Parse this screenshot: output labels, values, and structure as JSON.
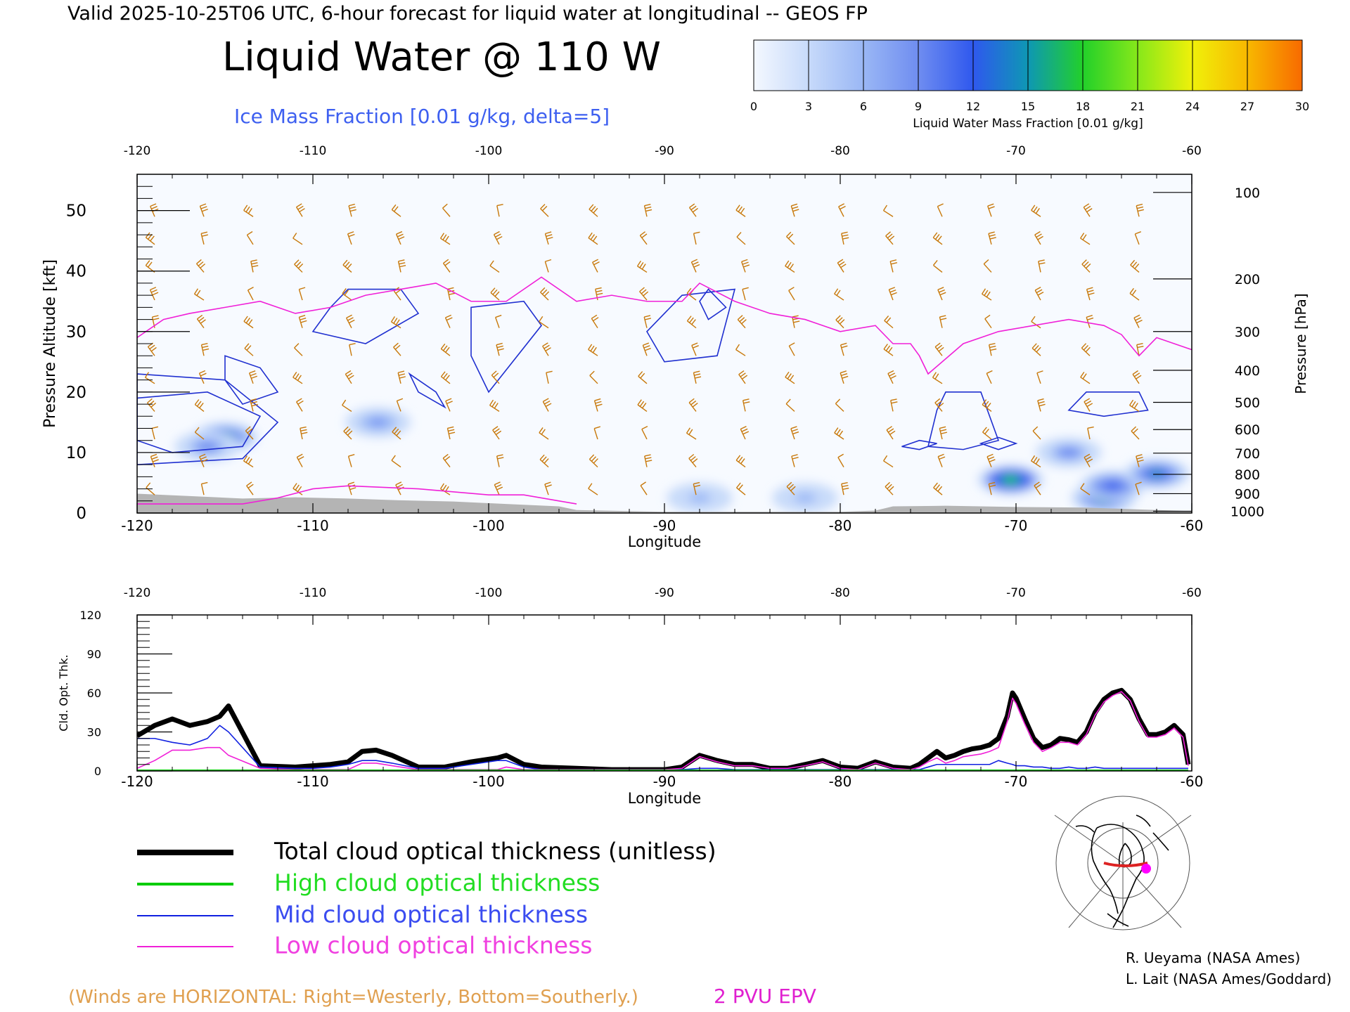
{
  "header": {
    "valid_line": "Valid 2025-10-25T06 UTC, 6-hour forecast for liquid water at longitudinal -- GEOS FP",
    "title": "Liquid Water @ 110 W",
    "subtitle": "Ice Mass Fraction [0.01 g/kg, delta=5]"
  },
  "colorbar": {
    "ticks": [
      "0",
      "3",
      "6",
      "9",
      "12",
      "15",
      "18",
      "21",
      "24",
      "27",
      "30"
    ],
    "label": "Liquid Water Mass Fraction [0.01 g/kg]",
    "colors": [
      "#f4f8ff",
      "#c7dafa",
      "#9ab7f5",
      "#6f8df0",
      "#2f58ee",
      "#0e97b4",
      "#22d02a",
      "#86e81a",
      "#f0f00a",
      "#f8b800",
      "#f86a00"
    ]
  },
  "colors": {
    "winds": "#c8780a",
    "epv": "#f020d8",
    "ice_contour": "#2030d0",
    "total": "#000000",
    "high": "#00cc00",
    "mid": "#1020e0",
    "low": "#f020d8",
    "terrain": "#b4b4b4"
  },
  "chart_data": [
    {
      "type": "heatmap",
      "title": "Liquid Water @ 110 W",
      "xlabel": "Longitude",
      "ylabel": "Pressure Altitude [kft]",
      "ylabel_right": "Pressure [hPa]",
      "xlim": [
        -120,
        -60
      ],
      "ylim": [
        0,
        56
      ],
      "x_ticks": [
        "-120",
        "-110",
        "-100",
        "-90",
        "-80",
        "-70",
        "-60"
      ],
      "top_x_ticks": [
        "-120",
        "-110",
        "-100",
        "-90",
        "-80",
        "-70",
        "-60"
      ],
      "y_ticks": [
        "0",
        "10",
        "20",
        "30",
        "40",
        "50"
      ],
      "pressure_ticks": [
        "100",
        "200",
        "300",
        "400",
        "500",
        "600",
        "700",
        "800",
        "900",
        "1000"
      ],
      "pressure_tick_kft": [
        53,
        38.7,
        30,
        23.6,
        18.3,
        13.8,
        9.9,
        6.4,
        3.2,
        0.3
      ],
      "liquid_water_blobs": [
        {
          "lon": -115.0,
          "kft": 12.5,
          "peak": 16
        },
        {
          "lon": -116.0,
          "kft": 11.0,
          "peak": 9
        },
        {
          "lon": -70.3,
          "kft": 5.5,
          "peak": 17
        },
        {
          "lon": -65.0,
          "kft": 2.5,
          "peak": 16
        },
        {
          "lon": -64.5,
          "kft": 4.5,
          "peak": 12
        },
        {
          "lon": -62.0,
          "kft": 6.5,
          "peak": 14
        },
        {
          "lon": -67.0,
          "kft": 10.0,
          "peak": 9
        },
        {
          "lon": -106.3,
          "kft": 15.0,
          "peak": 8
        },
        {
          "lon": -88.0,
          "kft": 2.5,
          "peak": 6
        },
        {
          "lon": -82.0,
          "kft": 2.5,
          "peak": 6
        }
      ],
      "ice_contour_rings": [
        [
          [
            -120,
            19
          ],
          [
            -116,
            20
          ],
          [
            -113,
            16
          ],
          [
            -114,
            11
          ],
          [
            -118,
            10
          ],
          [
            -120,
            12
          ]
        ],
        [
          [
            -120,
            23
          ],
          [
            -115,
            22
          ],
          [
            -112,
            15
          ],
          [
            -114,
            9
          ],
          [
            -120,
            8
          ]
        ],
        [
          [
            -115,
            26
          ],
          [
            -113,
            24
          ],
          [
            -112,
            20
          ],
          [
            -114,
            18
          ],
          [
            -115,
            22
          ]
        ],
        [
          [
            -108,
            37
          ],
          [
            -105,
            37
          ],
          [
            -104,
            33
          ],
          [
            -107,
            28
          ],
          [
            -110,
            30
          ],
          [
            -109,
            34
          ]
        ],
        [
          [
            -104.5,
            23
          ],
          [
            -103,
            20
          ],
          [
            -102.5,
            17.5
          ],
          [
            -104,
            20
          ]
        ],
        [
          [
            -101,
            34
          ],
          [
            -98,
            35
          ],
          [
            -97,
            31
          ],
          [
            -100,
            20
          ],
          [
            -101,
            26
          ]
        ],
        [
          [
            -89,
            36
          ],
          [
            -86,
            37
          ],
          [
            -87,
            26
          ],
          [
            -90,
            25
          ],
          [
            -91,
            30
          ]
        ],
        [
          [
            -87.5,
            37
          ],
          [
            -86.5,
            34
          ],
          [
            -87.5,
            32
          ],
          [
            -88,
            35
          ]
        ],
        [
          [
            -74,
            20
          ],
          [
            -72,
            20
          ],
          [
            -71,
            12
          ],
          [
            -73,
            10.5
          ],
          [
            -75,
            11
          ],
          [
            -74.5,
            17
          ]
        ],
        [
          [
            -66,
            20
          ],
          [
            -63,
            20
          ],
          [
            -62.5,
            17
          ],
          [
            -65,
            16
          ],
          [
            -67,
            17
          ]
        ],
        [
          [
            -75.5,
            12
          ],
          [
            -74.5,
            11.5
          ],
          [
            -75.5,
            10.5
          ],
          [
            -76.5,
            11
          ]
        ],
        [
          [
            -71,
            12.5
          ],
          [
            -70,
            11.5
          ],
          [
            -71,
            10.5
          ],
          [
            -72,
            11.5
          ]
        ]
      ],
      "epv_2pvu": {
        "upper": {
          "lon": [
            -120,
            -118.5,
            -117,
            -115,
            -113,
            -111,
            -109,
            -107,
            -105,
            -103,
            -101,
            -99,
            -97,
            -95,
            -93,
            -91,
            -89,
            -88,
            -86,
            -84,
            -82,
            -80,
            -78,
            -77,
            -76,
            -75.5,
            -75,
            -73,
            -71,
            -69,
            -67,
            -65,
            -64,
            -63,
            -62,
            -60
          ],
          "kft": [
            29,
            32,
            33,
            34,
            35,
            33,
            34,
            36,
            37,
            38,
            35,
            35,
            39,
            35,
            36,
            35,
            35,
            38,
            35,
            33,
            32,
            30,
            31,
            28,
            28,
            26,
            23,
            28,
            30,
            31,
            32,
            31,
            29.5,
            26,
            29,
            27
          ]
        },
        "lower": {
          "lon": [
            -120,
            -118,
            -116,
            -114,
            -112,
            -110,
            -108,
            -104,
            -100,
            -98,
            -96,
            -95
          ],
          "kft": [
            1.5,
            1.5,
            1.5,
            1.5,
            2.5,
            4,
            4.5,
            4,
            3,
            3,
            2,
            1.5
          ]
        }
      },
      "terrain_kft": {
        "lon": [
          -120,
          -117,
          -114,
          -111,
          -108,
          -105,
          -102,
          -99,
          -96,
          -95,
          -90,
          -80,
          -78,
          -77,
          -74,
          -70,
          -66,
          -63,
          -60
        ],
        "kft": [
          3.2,
          2.8,
          2.4,
          2.6,
          2.4,
          2.1,
          1.9,
          1.5,
          1.1,
          0.5,
          0.2,
          0.2,
          0.4,
          1.1,
          1.2,
          1.0,
          0.9,
          0.6,
          0.3
        ]
      }
    },
    {
      "type": "line",
      "xlabel": "Longitude",
      "ylabel": "Cld. Opt. Thk.",
      "xlim": [
        -120,
        -60
      ],
      "ylim": [
        0,
        120
      ],
      "x_ticks": [
        "-120",
        "-110",
        "-100",
        "-90",
        "-80",
        "-70",
        "-60"
      ],
      "top_x_ticks": [
        "-120",
        "-110",
        "-100",
        "-90",
        "-80",
        "-70",
        "-60"
      ],
      "y_ticks": [
        "0",
        "30",
        "60",
        "90",
        "120"
      ],
      "x": [
        -120,
        -119,
        -118,
        -117,
        -116,
        -115.3,
        -114.8,
        -113,
        -111,
        -110,
        -109,
        -108,
        -107.2,
        -106.4,
        -105.5,
        -104,
        -102.5,
        -101,
        -99.5,
        -99,
        -98,
        -97,
        -95,
        -93,
        -90,
        -89,
        -88,
        -87,
        -86,
        -85,
        -84,
        -83,
        -82,
        -81,
        -80,
        -79,
        -78,
        -77,
        -76,
        -75.5,
        -75,
        -74.5,
        -74,
        -73.5,
        -73,
        -72.5,
        -72,
        -71.5,
        -71,
        -70.5,
        -70.2,
        -70,
        -69.5,
        -69,
        -68.5,
        -68,
        -67.5,
        -67,
        -66.5,
        -66,
        -65.5,
        -65,
        -64.5,
        -64,
        -63.5,
        -63,
        -62.5,
        -62,
        -61.5,
        -61,
        -60.5,
        -60.2
      ],
      "series": [
        {
          "name": "Total cloud optical thickness (unitless)",
          "values": [
            27,
            35,
            40,
            35,
            38,
            42,
            50,
            4,
            3,
            4,
            5,
            7,
            15,
            16,
            12,
            3,
            3,
            7,
            10,
            12,
            5,
            3,
            2,
            1,
            1,
            3,
            12,
            8,
            5,
            5,
            2,
            2,
            5,
            8,
            3,
            2,
            7,
            3,
            2,
            5,
            10,
            15,
            10,
            12,
            15,
            17,
            18,
            20,
            25,
            42,
            60,
            56,
            40,
            25,
            18,
            20,
            25,
            24,
            22,
            30,
            45,
            55,
            60,
            62,
            55,
            40,
            28,
            28,
            30,
            35,
            28,
            5
          ]
        },
        {
          "name": "High cloud optical thickness",
          "values": [
            0,
            0,
            0,
            0,
            0,
            0,
            0,
            0,
            0,
            0,
            0,
            0,
            0,
            0,
            0,
            0,
            0,
            0,
            0,
            0,
            0,
            0,
            0,
            0,
            0,
            0,
            0,
            0,
            0,
            0,
            0,
            0,
            0,
            0,
            0,
            0,
            0,
            0,
            0,
            0,
            0,
            0,
            0,
            0,
            0,
            0,
            0,
            0,
            0,
            0,
            0,
            0,
            0,
            0,
            0,
            0,
            0,
            0,
            0,
            0,
            0,
            0,
            0,
            0,
            0,
            0,
            0,
            0,
            0,
            0,
            0,
            0
          ]
        },
        {
          "name": "Mid cloud optical thickness",
          "values": [
            25,
            25,
            22,
            20,
            25,
            35,
            30,
            3,
            2,
            2,
            3,
            5,
            8,
            8,
            6,
            2,
            2,
            5,
            8,
            8,
            3,
            1,
            1,
            1,
            1,
            1,
            2,
            2,
            1,
            1,
            1,
            1,
            1,
            1,
            1,
            1,
            1,
            1,
            1,
            1,
            3,
            5,
            5,
            5,
            5,
            5,
            5,
            5,
            8,
            6,
            5,
            4,
            4,
            3,
            3,
            2,
            2,
            3,
            2,
            2,
            3,
            2,
            2,
            2,
            2,
            2,
            2,
            2,
            2,
            2,
            2,
            2
          ]
        },
        {
          "name": "Low cloud optical thickness",
          "values": [
            2,
            8,
            16,
            16,
            18,
            18,
            12,
            2,
            1,
            1,
            1,
            1,
            6,
            6,
            4,
            1,
            1,
            1,
            1,
            3,
            1,
            1,
            1,
            1,
            1,
            2,
            11,
            7,
            4,
            4,
            2,
            2,
            4,
            7,
            2,
            1,
            6,
            2,
            1,
            3,
            7,
            10,
            6,
            8,
            11,
            12,
            13,
            15,
            18,
            38,
            56,
            52,
            36,
            22,
            15,
            18,
            22,
            22,
            20,
            28,
            43,
            53,
            58,
            61,
            54,
            38,
            26,
            26,
            28,
            33,
            26,
            4
          ]
        }
      ]
    }
  ],
  "legend": {
    "total": "Total cloud optical thickness (unitless)",
    "high": "High cloud optical thickness",
    "mid": "Mid cloud optical thickness",
    "low": "Low cloud optical thickness"
  },
  "footer": {
    "winds_note": "(Winds are HORIZONTAL: Right=Westerly, Bottom=Southerly.)",
    "epv_label": "2 PVU EPV",
    "credit1": "R. Ueyama (NASA Ames)",
    "credit2": "L. Lait (NASA Ames/Goddard)"
  }
}
